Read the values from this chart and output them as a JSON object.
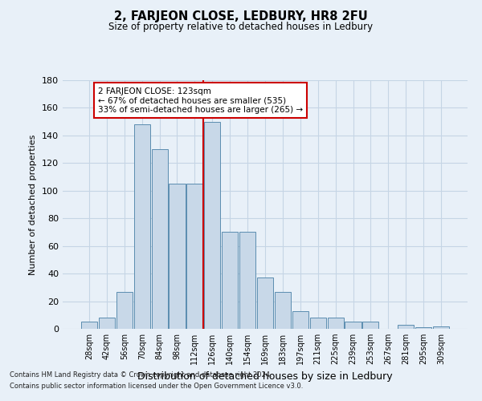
{
  "title": "2, FARJEON CLOSE, LEDBURY, HR8 2FU",
  "subtitle": "Size of property relative to detached houses in Ledbury",
  "xlabel": "Distribution of detached houses by size in Ledbury",
  "ylabel": "Number of detached properties",
  "bar_labels": [
    "28sqm",
    "42sqm",
    "56sqm",
    "70sqm",
    "84sqm",
    "98sqm",
    "112sqm",
    "126sqm",
    "140sqm",
    "154sqm",
    "169sqm",
    "183sqm",
    "197sqm",
    "211sqm",
    "225sqm",
    "239sqm",
    "253sqm",
    "267sqm",
    "281sqm",
    "295sqm",
    "309sqm"
  ],
  "bar_values": [
    5,
    8,
    27,
    148,
    130,
    105,
    105,
    150,
    70,
    70,
    37,
    27,
    13,
    8,
    8,
    5,
    5,
    0,
    3,
    1,
    2
  ],
  "bar_color": "#c8d8e8",
  "bar_edge_color": "#5b8db0",
  "vline_color": "#cc0000",
  "annotation_text": "2 FARJEON CLOSE: 123sqm\n← 67% of detached houses are smaller (535)\n33% of semi-detached houses are larger (265) →",
  "annotation_box_color": "white",
  "annotation_box_edge_color": "#cc0000",
  "ylim": [
    0,
    180
  ],
  "yticks": [
    0,
    20,
    40,
    60,
    80,
    100,
    120,
    140,
    160,
    180
  ],
  "grid_color": "#c5d5e5",
  "background_color": "#e8f0f8",
  "footer_line1": "Contains HM Land Registry data © Crown copyright and database right 2024.",
  "footer_line2": "Contains public sector information licensed under the Open Government Licence v3.0."
}
